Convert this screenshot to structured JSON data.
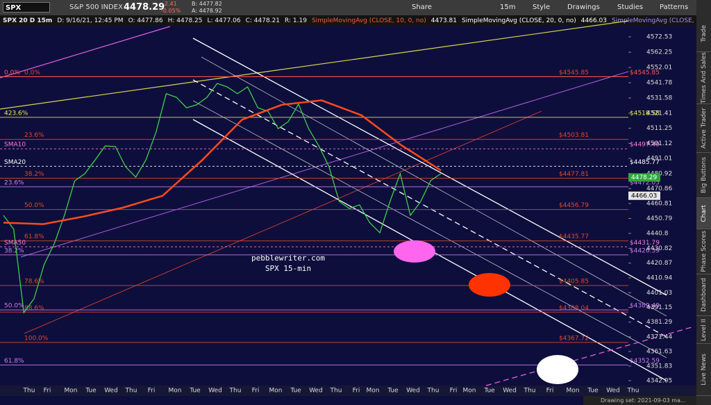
{
  "toolbar": {
    "symbol": "SPX",
    "name": "S&P 500 INDEX",
    "last": "4478.29",
    "change": "-2.41",
    "change_pct": "-0.05%",
    "bid": "B: 4477.82",
    "ask": "A: 4478.92",
    "buttons": [
      "Share",
      "15m",
      "Style",
      "Drawings",
      "Studies",
      "Patterns"
    ]
  },
  "header": {
    "chart": "SPX 20 D 15m",
    "fields": [
      "D: 9/16/21, 12:45 PM",
      "O: 4477.86",
      "H: 4478.25",
      "L: 4477.06",
      "C: 4478.21",
      "R: 1.19"
    ],
    "studies": [
      {
        "label": "SimpleMovingAvg (CLOSE, 10, 0, no)",
        "value": "4473.81",
        "color": "#ff5a3c"
      },
      {
        "label": "SimpleMovingAvg (CLOSE, 20, 0, no)",
        "value": "4466.03",
        "color": "#ffffff"
      },
      {
        "label": "SimpleMovingAvg (CLOSE, 50, 0,...",
        "color": "#a98bff"
      }
    ]
  },
  "chart_data": {
    "type": "line",
    "ylim": [
      4338.8,
      4580
    ],
    "yticks": [
      4572.53,
      4562.25,
      4552.01,
      4541.78,
      4531.58,
      4521.41,
      4511.25,
      4501.12,
      4491.01,
      4480.92,
      4470.86,
      4460.81,
      4450.79,
      4440.8,
      4430.82,
      4420.87,
      4410.94,
      4401.03,
      4391.15,
      4381.29,
      4371.44,
      4361.63,
      4351.83,
      4342.05
    ],
    "lines": [
      {
        "color": "#3ecf4a",
        "values": [
          4452.9,
          4443.6,
          4387.7,
          4397,
          4420,
          4434,
          4453,
          4476,
          4480.8,
          4490,
          4499.4,
          4499,
          4485.5,
          4478.5,
          4490,
          4508.7,
          4534.4,
          4532,
          4525,
          4527,
          4532,
          4541.3,
          4539,
          4534.4,
          4539,
          4525,
          4522.7,
          4511,
          4515.7,
          4527.4,
          4511,
          4499.4,
          4485.5,
          4462.2,
          4457.5,
          4459.9,
          4448,
          4441.2,
          4462.2,
          4480.8,
          4452.9,
          4462,
          4476.2,
          4480.8
        ]
      },
      {
        "color": "#ff4a1c",
        "values": [
          4448,
          4447,
          4452,
          4458,
          4466,
          4490,
          4517,
          4527,
          4530,
          4520,
          4500,
          4483
        ]
      }
    ],
    "levels": [
      {
        "value": 4545.85,
        "kind": "retracement",
        "label": "0.0%",
        "price_label": "$4545.85",
        "color": "#e8462a"
      },
      {
        "value": 4545.85,
        "kind": "extension",
        "label": "0.0%",
        "price_label": "$4545.85",
        "color": "#ff5a4a"
      },
      {
        "value": 4518.58,
        "kind": "extension",
        "label": "423.6%",
        "price_label": "$4518.58",
        "color": "#e8e84a"
      },
      {
        "value": 4503.81,
        "kind": "retracement",
        "label": "23.6%",
        "price_label": "$4503.81",
        "color": "#e8462a"
      },
      {
        "value": 4497.49,
        "kind": "extension",
        "label": "SMA10",
        "price_label": "$4497.49",
        "color": "#ff7ad8",
        "dash": true
      },
      {
        "value": 4485.77,
        "kind": "extension",
        "label": "SMA20",
        "price_label": "$4485.77",
        "color": "#ffffff",
        "dash": true
      },
      {
        "value": 4477.81,
        "kind": "retracement",
        "label": "38.2%",
        "price_label": "$4477.81",
        "color": "#e8462a"
      },
      {
        "value": 4472.05,
        "kind": "extension",
        "label": "23.6%",
        "price_label": "$4472.05",
        "color": "#d07cf0"
      },
      {
        "value": 4456.79,
        "kind": "retracement",
        "label": "50.0%",
        "price_label": "$4456.79",
        "color": "#e8462a"
      },
      {
        "value": 4435.77,
        "kind": "retracement",
        "label": "61.8%",
        "price_label": "$4435.77",
        "color": "#e8462a"
      },
      {
        "value": 4431.79,
        "kind": "extension",
        "label": "SMA50",
        "price_label": "$4431.79",
        "color": "#ff7ad8",
        "dash": true
      },
      {
        "value": 4426.39,
        "kind": "extension",
        "label": "38.2%",
        "price_label": "$4426.39",
        "color": "#d07cf0"
      },
      {
        "value": 4405.85,
        "kind": "retracement",
        "label": "78.6%",
        "price_label": "$4405.85",
        "color": "#e8462a"
      },
      {
        "value": 4389.49,
        "kind": "extension",
        "label": "50.0%",
        "price_label": "$4389.49",
        "color": "#d07cf0"
      },
      {
        "value": 4388.04,
        "kind": "retracement",
        "label": "88.6%",
        "price_label": "$4388.04",
        "color": "#e8462a"
      },
      {
        "value": 4367.72,
        "kind": "retracement",
        "label": "100.0%",
        "price_label": "$4367.72",
        "color": "#e8462a"
      },
      {
        "value": 4352.59,
        "kind": "extension",
        "label": "61.8%",
        "price_label": "$4352.59",
        "color": "#d07cf0"
      }
    ],
    "last_price": {
      "value": 4478.29,
      "color": "#2fa83a"
    },
    "sma_price": {
      "value": 4466.03,
      "color": "#e6e6e6"
    },
    "x_labels": [
      "Thu",
      "Fri",
      "Mon",
      "Tue",
      "Wed",
      "Thu",
      "Fri",
      "Mon",
      "Tue",
      "Wed",
      "Thu",
      "Fri",
      "Mon",
      "Tue",
      "Wed",
      "Thu",
      "Fri",
      "Mon",
      "Tue",
      "Wed",
      "Thu",
      "Fri",
      "Mon",
      "Tue",
      "Wed",
      "Thu",
      "Fri",
      "Mon",
      "Tue",
      "Wed",
      "Thu"
    ]
  },
  "watermark": [
    "pebblewriter.com",
    "SPX 15-min"
  ],
  "side_tabs": [
    "Trade",
    "Times And Sales",
    "Active Trader",
    "Big Buttons",
    "Chart",
    "Phase Scores",
    "Dashboard",
    "Level II",
    "Live News"
  ],
  "status": "Drawing set: 2021-09-03 ma..."
}
